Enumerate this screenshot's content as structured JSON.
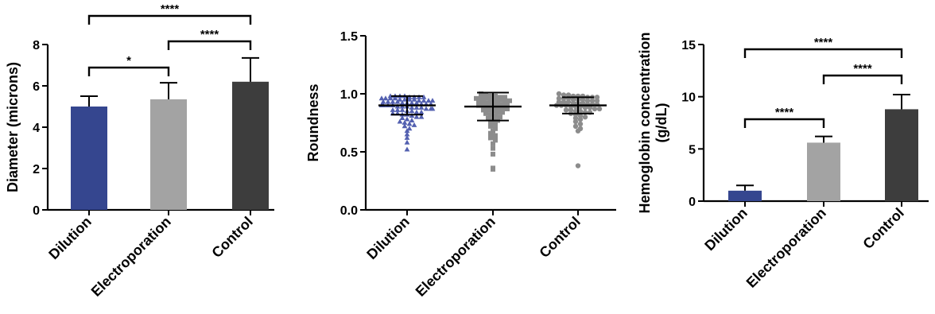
{
  "chart_data": [
    {
      "type": "bar",
      "categories": [
        "Dilution",
        "Electroporation",
        "Control"
      ],
      "values": [
        5.0,
        5.35,
        6.2
      ],
      "errors": [
        0.5,
        0.8,
        1.15
      ],
      "ylabel": "Diameter (microns)",
      "ylim": [
        0,
        8
      ],
      "yticks": [
        "0",
        "2",
        "4",
        "6",
        "8"
      ],
      "bar_colors": [
        "#35468f",
        "#a3a3a3",
        "#3d3d3d"
      ],
      "significance": [
        {
          "from": "Dilution",
          "to": "Electroporation",
          "label": "*"
        },
        {
          "from": "Electroporation",
          "to": "Control",
          "label": "****"
        },
        {
          "from": "Dilution",
          "to": "Control",
          "label": "****"
        }
      ]
    },
    {
      "type": "scatter",
      "categories": [
        "Dilution",
        "Electroporation",
        "Control"
      ],
      "ylabel": "Roundness",
      "ylim": [
        0,
        1.5
      ],
      "yticks": [
        "0.0",
        "0.5",
        "1.0",
        "1.5"
      ],
      "marker_colors": [
        "#5360b0",
        "#8c8c8c",
        "#8c8c8c"
      ],
      "markers": [
        "triangle",
        "square",
        "circle"
      ],
      "means": [
        0.9,
        0.89,
        0.9
      ],
      "sd": [
        0.08,
        0.12,
        0.07
      ],
      "series": [
        {
          "values": [
            0.98,
            0.98,
            0.98,
            0.98,
            0.97,
            0.97,
            0.97,
            0.97,
            0.96,
            0.96,
            0.96,
            0.96,
            0.95,
            0.95,
            0.95,
            0.95,
            0.94,
            0.94,
            0.94,
            0.94,
            0.93,
            0.93,
            0.93,
            0.93,
            0.92,
            0.92,
            0.92,
            0.92,
            0.91,
            0.91,
            0.91,
            0.9,
            0.9,
            0.9,
            0.9,
            0.89,
            0.89,
            0.89,
            0.88,
            0.88,
            0.88,
            0.87,
            0.87,
            0.87,
            0.86,
            0.86,
            0.86,
            0.85,
            0.85,
            0.84,
            0.84,
            0.83,
            0.83,
            0.82,
            0.82,
            0.81,
            0.8,
            0.8,
            0.79,
            0.78,
            0.77,
            0.76,
            0.75,
            0.74,
            0.73,
            0.72,
            0.7,
            0.68,
            0.65,
            0.62,
            0.58,
            0.52
          ]
        },
        {
          "values": [
            1.0,
            0.99,
            0.98,
            0.98,
            0.97,
            0.97,
            0.96,
            0.96,
            0.96,
            0.95,
            0.95,
            0.95,
            0.94,
            0.94,
            0.93,
            0.93,
            0.92,
            0.92,
            0.92,
            0.91,
            0.91,
            0.9,
            0.9,
            0.9,
            0.89,
            0.88,
            0.88,
            0.87,
            0.86,
            0.86,
            0.85,
            0.84,
            0.84,
            0.83,
            0.82,
            0.81,
            0.8,
            0.79,
            0.78,
            0.77,
            0.76,
            0.74,
            0.72,
            0.7,
            0.68,
            0.66,
            0.64,
            0.62,
            0.6,
            0.57,
            0.53,
            0.48,
            0.36,
            0.35
          ]
        },
        {
          "values": [
            1.0,
            0.99,
            0.99,
            0.98,
            0.98,
            0.98,
            0.97,
            0.97,
            0.97,
            0.96,
            0.96,
            0.96,
            0.95,
            0.95,
            0.95,
            0.94,
            0.94,
            0.94,
            0.93,
            0.93,
            0.93,
            0.92,
            0.92,
            0.92,
            0.91,
            0.91,
            0.91,
            0.9,
            0.9,
            0.9,
            0.89,
            0.89,
            0.89,
            0.88,
            0.88,
            0.87,
            0.87,
            0.86,
            0.86,
            0.85,
            0.85,
            0.84,
            0.84,
            0.83,
            0.82,
            0.81,
            0.8,
            0.79,
            0.78,
            0.76,
            0.74,
            0.72,
            0.7,
            0.68,
            0.38
          ]
        }
      ]
    },
    {
      "type": "bar",
      "categories": [
        "Dilution",
        "Electroporation",
        "Control"
      ],
      "values": [
        1.0,
        5.6,
        8.8
      ],
      "errors": [
        0.5,
        0.6,
        1.4
      ],
      "ylabel": [
        "Hemoglobin concentration",
        "(g/dL)"
      ],
      "ylim": [
        0,
        15
      ],
      "yticks": [
        "0",
        "5",
        "10",
        "15"
      ],
      "bar_colors": [
        "#35468f",
        "#a3a3a3",
        "#3d3d3d"
      ],
      "significance": [
        {
          "from": "Dilution",
          "to": "Electroporation",
          "label": "****"
        },
        {
          "from": "Electroporation",
          "to": "Control",
          "label": "****"
        },
        {
          "from": "Dilution",
          "to": "Control",
          "label": "****"
        }
      ]
    }
  ]
}
